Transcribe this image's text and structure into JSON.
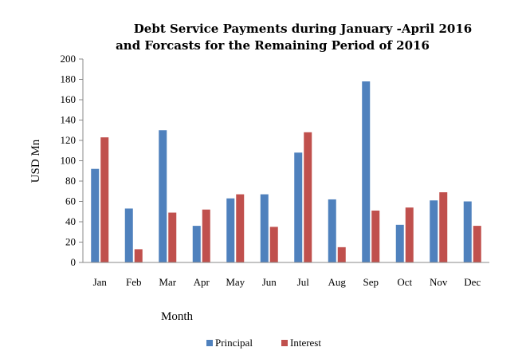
{
  "chart_data": {
    "type": "bar",
    "title_lines": [
      "Debt Service Payments during January -April 2016",
      "and Forcasts for the Remaining Period of 2016"
    ],
    "xlabel": "Month",
    "ylabel": "USD Mn",
    "ylim": [
      0,
      200
    ],
    "yticks": [
      0,
      20,
      40,
      60,
      80,
      100,
      120,
      140,
      160,
      180,
      200
    ],
    "categories": [
      "Jan",
      "Feb",
      "Mar",
      "Apr",
      "May",
      "Jun",
      "Jul",
      "Aug",
      "Sep",
      "Oct",
      "Nov",
      "Dec"
    ],
    "series": [
      {
        "name": "Principal",
        "color": "#4F81BD",
        "values": [
          92,
          53,
          130,
          36,
          63,
          67,
          108,
          62,
          178,
          37,
          61,
          60
        ]
      },
      {
        "name": "Interest",
        "color": "#C0504D",
        "values": [
          123,
          13,
          49,
          52,
          67,
          35,
          128,
          15,
          51,
          54,
          69,
          36
        ]
      }
    ],
    "grid": false,
    "legend": "bottom"
  }
}
